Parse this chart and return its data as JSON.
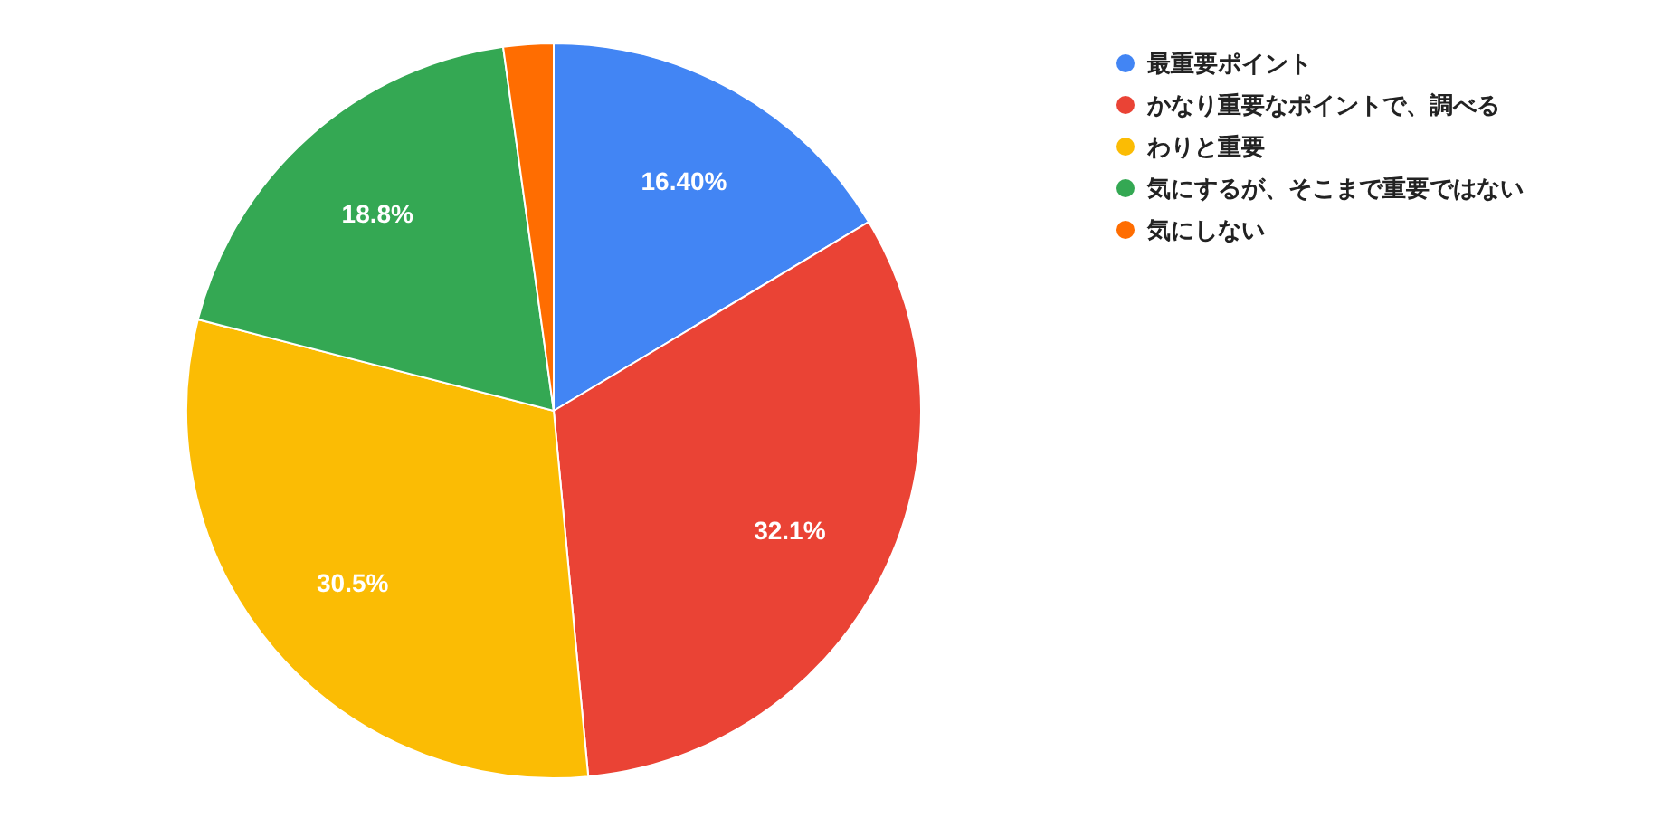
{
  "chart_data": {
    "type": "pie",
    "categories": [
      "最重要ポイント",
      "かなり重要なポイントで、調べる",
      "わりと重要",
      "気にするが、そこまで重要ではない",
      "気にしない"
    ],
    "values": [
      16.4,
      32.1,
      30.5,
      18.8,
      2.2
    ],
    "value_labels": [
      "16.40%",
      "32.1%",
      "30.5%",
      "18.8%",
      null
    ],
    "colors": [
      "#4285f4",
      "#ea4335",
      "#fbbc04",
      "#34a853",
      "#ff6d01"
    ],
    "legend": "right"
  }
}
